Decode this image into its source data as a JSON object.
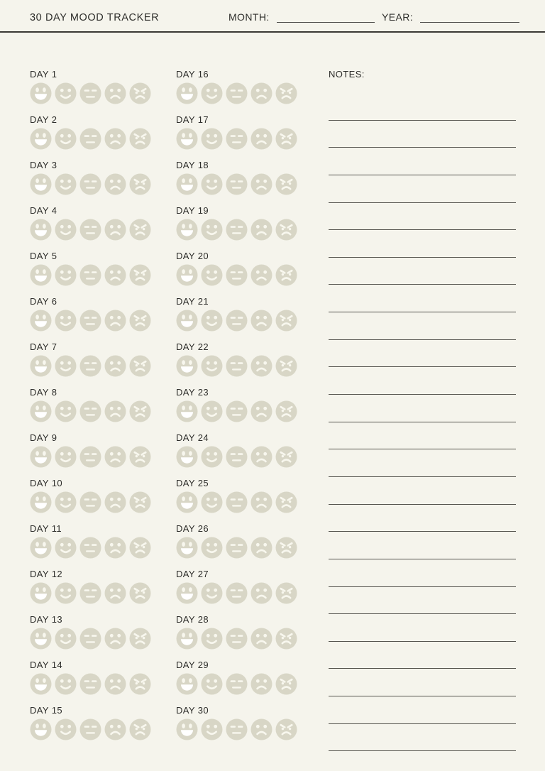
{
  "header": {
    "title": "30 DAY MOOD TRACKER",
    "month_label": "MONTH:",
    "month_value": "",
    "year_label": "YEAR:",
    "year_value": ""
  },
  "days": [
    "DAY 1",
    "DAY 2",
    "DAY 3",
    "DAY 4",
    "DAY 5",
    "DAY 6",
    "DAY 7",
    "DAY 8",
    "DAY 9",
    "DAY 10",
    "DAY 11",
    "DAY 12",
    "DAY 13",
    "DAY 14",
    "DAY 15",
    "DAY 16",
    "DAY 17",
    "DAY 18",
    "DAY 19",
    "DAY 20",
    "DAY 21",
    "DAY 22",
    "DAY 23",
    "DAY 24",
    "DAY 25",
    "DAY 26",
    "DAY 27",
    "DAY 28",
    "DAY 29",
    "DAY 30"
  ],
  "moods": [
    {
      "id": "very-happy",
      "label": "Very happy"
    },
    {
      "id": "happy",
      "label": "Happy"
    },
    {
      "id": "neutral",
      "label": "Neutral"
    },
    {
      "id": "sad",
      "label": "Sad"
    },
    {
      "id": "angry",
      "label": "Angry"
    }
  ],
  "notes": {
    "label": "NOTES:",
    "line_count": 24
  },
  "colors": {
    "background": "#f5f4ec",
    "face": "#d8d6c6",
    "feature": "#f8f7ee",
    "laugh_mouth": "#ffffff",
    "text": "#2d2d2a",
    "note_rule": "#55544e",
    "header_rule": "#3b3a35"
  }
}
